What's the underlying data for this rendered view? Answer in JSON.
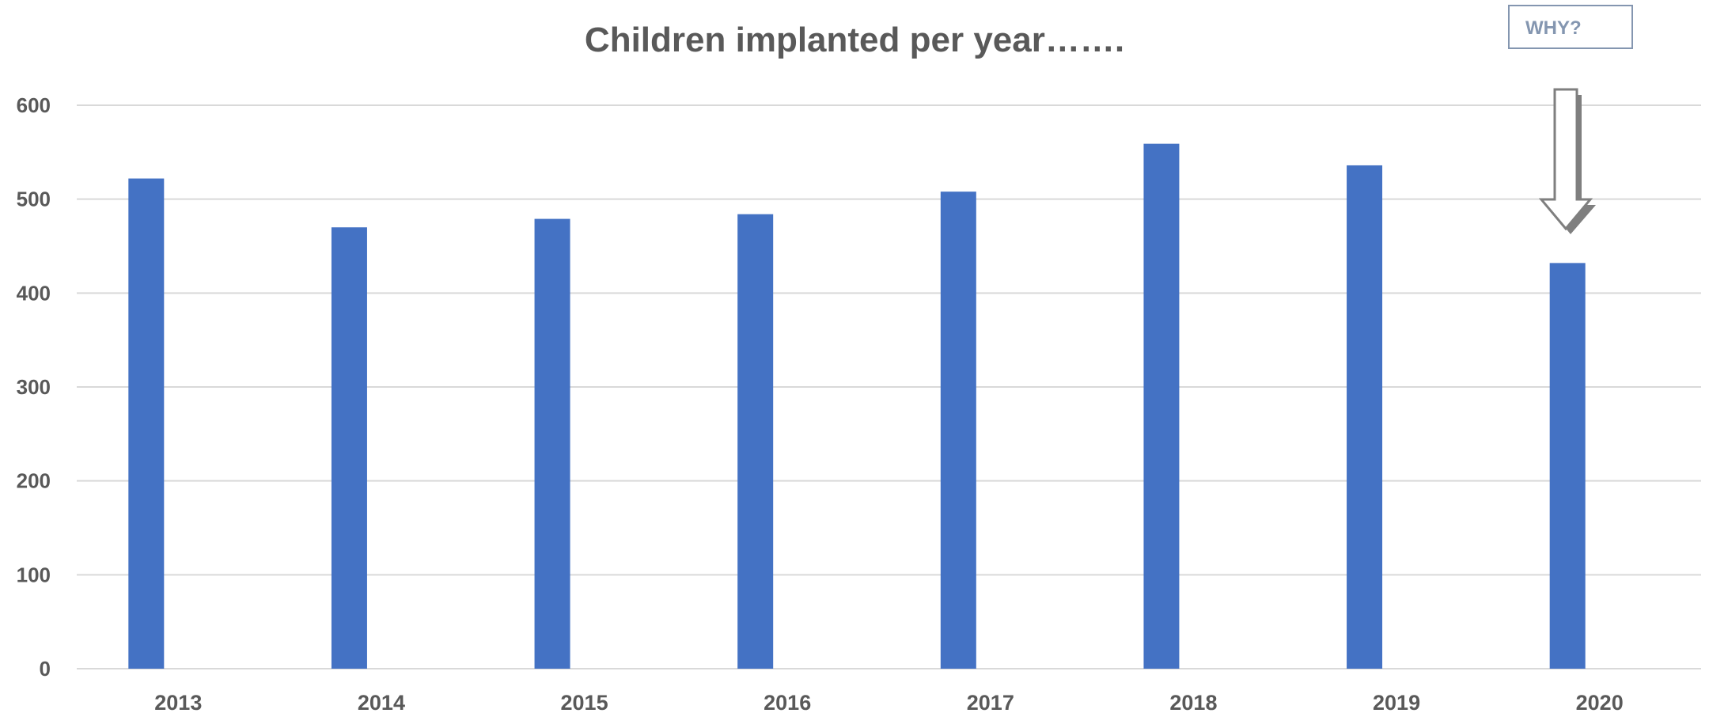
{
  "chart_data": {
    "type": "bar",
    "title": "Children  implanted per year…….",
    "xlabel": "",
    "ylabel": "",
    "categories": [
      "2013",
      "2014",
      "2015",
      "2016",
      "2017",
      "2018",
      "2019",
      "2020"
    ],
    "values": [
      522,
      470,
      479,
      484,
      508,
      559,
      536,
      432
    ],
    "ylim": [
      0,
      600
    ],
    "yticks": [
      0,
      100,
      200,
      300,
      400,
      500,
      600
    ],
    "ytick_labels": [
      "0",
      "100",
      "200",
      "300",
      "400",
      "500",
      "600"
    ],
    "grid": true,
    "legend": "none",
    "bar_color": "#4472c4",
    "grid_color": "#d9d9d9",
    "annotation": {
      "text": "WHY?",
      "points_to": "2020",
      "arrow_icon": "down-arrow-icon",
      "box_border_color": "#8496b0"
    }
  }
}
